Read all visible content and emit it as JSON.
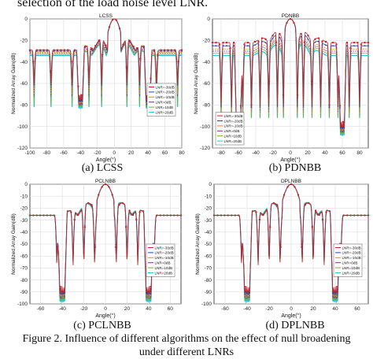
{
  "header_text": "selection of the load noise level LNR.",
  "figure_caption": {
    "line1": "Figure 2. Influence of different algorithms on the effect of null broadening",
    "line2": "under different LNRs"
  },
  "colors": {
    "red": "#c1272d",
    "blue": "#2b3fa8",
    "orange": "#e08a1e",
    "purple": "#7a2f8f",
    "green": "#77ac30",
    "cyan": "#2ec4d6"
  },
  "chart_data": [
    {
      "id": "lcss",
      "caption": "(a) LCSS",
      "type": "line",
      "title": "LCSS",
      "xlabel": "Angle(°)",
      "ylabel": "Normalized Array Gain(dB)",
      "xlim": [
        -100,
        80
      ],
      "ylim": [
        -120,
        0
      ],
      "xticks": [
        -100,
        -80,
        -60,
        -40,
        -20,
        0,
        20,
        40,
        60,
        80
      ],
      "yticks": [
        0,
        -20,
        -40,
        -60,
        -80,
        -100,
        -120
      ],
      "grid": true,
      "legend_position": "center-right",
      "nulls": [
        -95,
        -75,
        -50,
        -30,
        -15,
        15,
        30,
        50,
        75
      ],
      "broad_nulls": [
        -40,
        40
      ],
      "series": [
        {
          "name": "LNR=-30dB",
          "color": "#c1272d",
          "marker": "star",
          "floor": -29,
          "null_depth": -60
        },
        {
          "name": "LNR=-20dB",
          "color": "#2b3fa8",
          "marker": "dot",
          "floor": -30,
          "null_depth": -65
        },
        {
          "name": "LNR=-10dB",
          "color": "#e08a1e",
          "marker": "none",
          "floor": -31,
          "null_depth": -70
        },
        {
          "name": "LNR=0dB",
          "color": "#7a2f8f",
          "marker": "none",
          "floor": -32,
          "null_depth": -75
        },
        {
          "name": "LNR=10dB",
          "color": "#77ac30",
          "marker": "none",
          "floor": -33,
          "null_depth": -80
        },
        {
          "name": "LNR=20dB",
          "color": "#2ec4d6",
          "marker": "none",
          "floor": -34,
          "null_depth": -85
        }
      ],
      "broad_null_depth": -70
    },
    {
      "id": "pdnbb",
      "caption": "(b) PDNBB",
      "type": "line",
      "title": "PDNBB",
      "xlabel": "Angle(°)",
      "ylabel": "Normalized Array Gain(dB)",
      "xlim": [
        -90,
        90
      ],
      "ylim": [
        -120,
        0
      ],
      "xticks": [
        -80,
        -60,
        -40,
        -20,
        0,
        20,
        40,
        60,
        80
      ],
      "yticks": [
        0,
        -20,
        -40,
        -60,
        -80,
        -100,
        -120
      ],
      "grid": true,
      "legend_position": "bottom-left",
      "nulls": [
        -80,
        -68,
        -55,
        -45,
        -35,
        -25,
        -15,
        -8,
        8,
        15,
        25,
        35,
        45,
        55,
        68,
        80
      ],
      "broad_nulls": [
        -60,
        60
      ],
      "series": [
        {
          "name": "LNR=-30dB",
          "color": "#c1272d",
          "marker": "star",
          "floor": -22,
          "null_depth": -80
        },
        {
          "name": "LNR=-20dB",
          "color": "#2b3fa8",
          "marker": "dot",
          "floor": -25,
          "null_depth": -85
        },
        {
          "name": "LNR=-10dB",
          "color": "#e08a1e",
          "marker": "none",
          "floor": -28,
          "null_depth": -88
        },
        {
          "name": "LNR=0dB",
          "color": "#7a2f8f",
          "marker": "none",
          "floor": -30,
          "null_depth": -90
        },
        {
          "name": "LNR=10dB",
          "color": "#77ac30",
          "marker": "none",
          "floor": -32,
          "null_depth": -92
        },
        {
          "name": "LNR=20dB",
          "color": "#2ec4d6",
          "marker": "none",
          "floor": -34,
          "null_depth": -95
        }
      ],
      "broad_null_depth": -95
    },
    {
      "id": "pclnbb",
      "caption": "(c) PCLNBB",
      "type": "line",
      "title": "PCLNBB",
      "xlabel": "Angle(°)",
      "ylabel": "Normalized Array Gain(dB)",
      "xlim": [
        -70,
        70
      ],
      "ylim": [
        -100,
        0
      ],
      "xticks": [
        -60,
        -40,
        -20,
        0,
        20,
        40,
        60
      ],
      "yticks": [
        0,
        -10,
        -20,
        -30,
        -40,
        -50,
        -60,
        -70,
        -80,
        -90,
        -100
      ],
      "grid": true,
      "legend_position": "center-right",
      "nulls": [
        -45,
        -30,
        -20,
        -10,
        10,
        20,
        30,
        45
      ],
      "broad_nulls": [
        -40,
        40
      ],
      "series": [
        {
          "name": "LNR=-30dB",
          "color": "#c1272d",
          "marker": "star",
          "floor": -26,
          "null_depth": -70
        },
        {
          "name": "LNR=-20dB",
          "color": "#2b3fa8",
          "marker": "dot",
          "floor": -26,
          "null_depth": -70
        },
        {
          "name": "LNR=-10dB",
          "color": "#e08a1e",
          "marker": "none",
          "floor": -26,
          "null_depth": -70
        },
        {
          "name": "LNR=0dB",
          "color": "#7a2f8f",
          "marker": "none",
          "floor": -26,
          "null_depth": -70
        },
        {
          "name": "LNR=10dB",
          "color": "#77ac30",
          "marker": "none",
          "floor": -26,
          "null_depth": -70
        },
        {
          "name": "LNR=20dB",
          "color": "#2ec4d6",
          "marker": "none",
          "floor": -26,
          "null_depth": -70
        }
      ],
      "broad_null_depth": -85
    },
    {
      "id": "dplnbb",
      "caption": "(d) DPLNBB",
      "type": "line",
      "title": "DPLNBB",
      "xlabel": "Angle(°)",
      "ylabel": "Normalized Array Gain(dB)",
      "xlim": [
        -70,
        70
      ],
      "ylim": [
        -100,
        0
      ],
      "xticks": [
        -60,
        -40,
        -20,
        0,
        20,
        40,
        60
      ],
      "yticks": [
        0,
        -10,
        -20,
        -30,
        -40,
        -50,
        -60,
        -70,
        -80,
        -90,
        -100
      ],
      "grid": true,
      "legend_position": "center-right",
      "nulls": [
        -45,
        -30,
        -20,
        -10,
        10,
        20,
        30,
        45
      ],
      "broad_nulls": [
        -40,
        40
      ],
      "series": [
        {
          "name": "LNR=-30dB",
          "color": "#c1272d",
          "marker": "star",
          "floor": -26,
          "null_depth": -70
        },
        {
          "name": "LNR=-20dB",
          "color": "#2b3fa8",
          "marker": "dot",
          "floor": -26,
          "null_depth": -70
        },
        {
          "name": "LNR=-10dB",
          "color": "#e08a1e",
          "marker": "none",
          "floor": -26,
          "null_depth": -70
        },
        {
          "name": "LNR=0dB",
          "color": "#7a2f8f",
          "marker": "none",
          "floor": -26,
          "null_depth": -70
        },
        {
          "name": "LNR=10dB",
          "color": "#77ac30",
          "marker": "none",
          "floor": -26,
          "null_depth": -70
        },
        {
          "name": "LNR=20dB",
          "color": "#2ec4d6",
          "marker": "none",
          "floor": -26,
          "null_depth": -70
        }
      ],
      "broad_null_depth": -85
    }
  ]
}
